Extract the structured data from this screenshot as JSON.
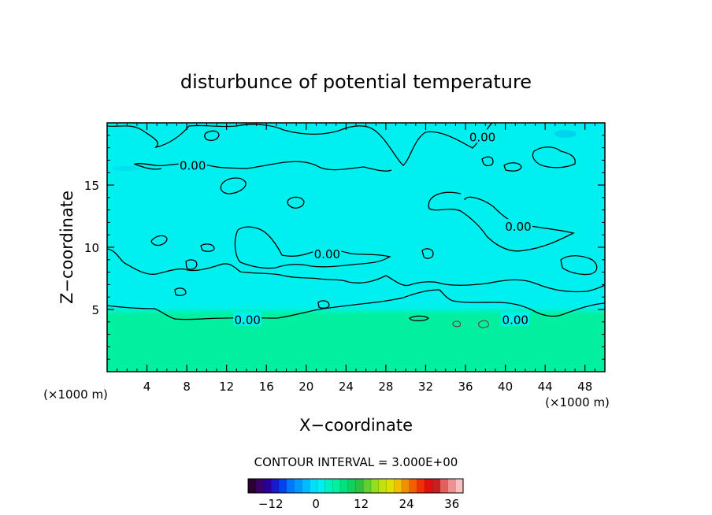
{
  "chart_data": {
    "type": "heatmap",
    "title": "disturbunce of potential temperature",
    "xlabel": "X−coordinate",
    "ylabel": "Z−coordinate",
    "x_unit": "(×1000 m)",
    "z_unit": "(×1000 m)",
    "xlim": [
      0,
      50
    ],
    "ylim": [
      0,
      20
    ],
    "x_ticks": [
      4,
      8,
      12,
      16,
      20,
      24,
      28,
      32,
      36,
      40,
      44,
      48
    ],
    "y_ticks": [
      5,
      10,
      15
    ],
    "x_tick_labels": [
      "4",
      "8",
      "12",
      "16",
      "20",
      "24",
      "28",
      "32",
      "36",
      "40",
      "44",
      "48"
    ],
    "y_tick_labels": [
      "5",
      "10",
      "15"
    ],
    "contour_interval_label": "CONTOUR INTERVAL = 3.000E+00",
    "contour_labels": [
      {
        "text": "0.00",
        "x": 8.6,
        "z": 16.6
      },
      {
        "text": "0.00",
        "x": 37.7,
        "z": 18.9
      },
      {
        "text": "0.00",
        "x": 41.3,
        "z": 11.7
      },
      {
        "text": "0.00",
        "x": 22.1,
        "z": 9.5
      },
      {
        "text": "0.00",
        "x": 14.1,
        "z": 4.2
      },
      {
        "text": "0.00",
        "x": 41.0,
        "z": 4.2
      }
    ],
    "colorbar": {
      "min": -18,
      "max": 39,
      "tick_values": [
        -12,
        0,
        12,
        24,
        36
      ],
      "tick_labels": [
        "−12",
        "0",
        "12",
        "24",
        "36"
      ]
    },
    "field_colors": {
      "upper": "#00f0f0",
      "lower": "#00f0a0",
      "cool_spot": "#00c8f0"
    },
    "colormap": [
      "#2a0033",
      "#3a0066",
      "#2a0099",
      "#1a1acc",
      "#0044ee",
      "#0077ff",
      "#0099ff",
      "#00bbff",
      "#00ddff",
      "#00eeee",
      "#00f0c0",
      "#00f0a0",
      "#00e080",
      "#10d060",
      "#30c040",
      "#60d030",
      "#90e020",
      "#c0e010",
      "#e0e000",
      "#f0c000",
      "#f09000",
      "#f06000",
      "#f03000",
      "#e01010",
      "#c82020",
      "#e06060",
      "#f09090",
      "#f8c0c0"
    ]
  }
}
